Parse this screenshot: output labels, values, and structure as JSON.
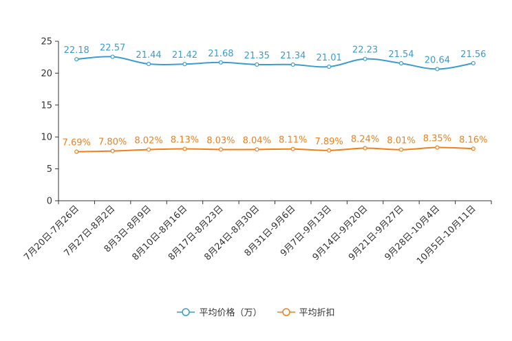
{
  "chart_data": {
    "type": "line",
    "categories": [
      "7月20日-7月26日",
      "7月27日-8月2日",
      "8月3日-8月9日",
      "8月10日-8月16日",
      "8月17日-8月23日",
      "8月24日-8月30日",
      "8月31日-9月6日",
      "9月7日-9月13日",
      "9月14日-9月20日",
      "9月21日-9月27日",
      "9月28日-10月4日",
      "10月5日-10月11日"
    ],
    "ylim": [
      0,
      25
    ],
    "yticks": [
      0,
      5,
      10,
      15,
      20,
      25
    ],
    "series": [
      {
        "name": "平均价格（万）",
        "color": "#3a9ccf",
        "values": [
          22.18,
          22.57,
          21.44,
          21.42,
          21.68,
          21.35,
          21.34,
          21.01,
          22.23,
          21.54,
          20.64,
          21.56
        ],
        "labels": [
          "22.18",
          "22.57",
          "21.44",
          "21.42",
          "21.68",
          "21.35",
          "21.34",
          "21.01",
          "22.23",
          "21.54",
          "20.64",
          "21.56"
        ]
      },
      {
        "name": "平均折扣",
        "color": "#f07f1b",
        "values": [
          7.69,
          7.8,
          8.02,
          8.13,
          8.03,
          8.04,
          8.11,
          7.89,
          8.24,
          8.01,
          8.35,
          8.16
        ],
        "labels": [
          "7.69%",
          "7.80%",
          "8.02%",
          "8.13%",
          "8.03%",
          "8.04%",
          "8.11%",
          "7.89%",
          "8.24%",
          "8.01%",
          "8.35%",
          "8.16%"
        ]
      }
    ],
    "legend_position": "bottom"
  }
}
